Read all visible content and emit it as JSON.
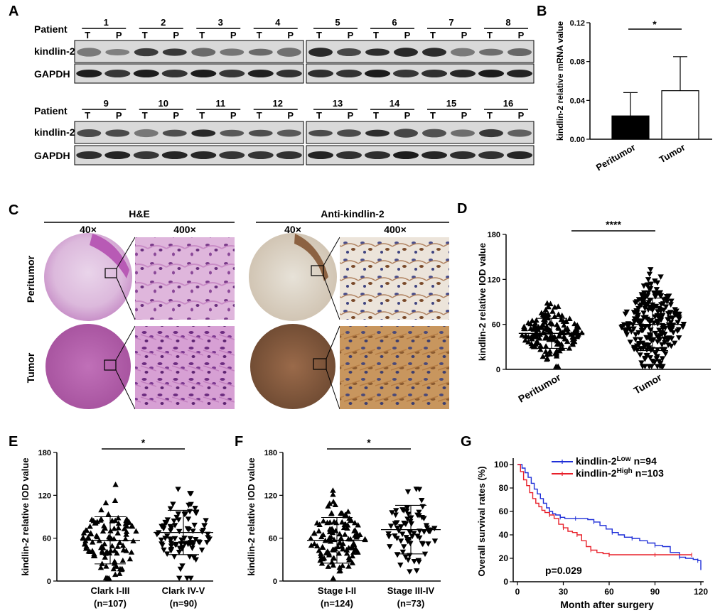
{
  "panels": {
    "A": {
      "label": "A",
      "row_label_patient": "Patient",
      "row_label_target": "kindlin-2",
      "row_label_control": "GAPDH",
      "lane_t": "T",
      "lane_p": "P",
      "patients_top": [
        "1",
        "2",
        "3",
        "4",
        "5",
        "6",
        "7",
        "8"
      ],
      "patients_bottom": [
        "9",
        "10",
        "11",
        "12",
        "13",
        "14",
        "15",
        "16"
      ]
    },
    "B": {
      "label": "B",
      "significance": "*",
      "chart_data": {
        "type": "bar",
        "categories": [
          "Peritumor",
          "Tumor"
        ],
        "values": [
          0.024,
          0.05
        ],
        "errors": [
          0.024,
          0.035
        ],
        "colors": [
          "#000000",
          "#ffffff"
        ],
        "ylabel": "kindlin-2 relative mRNA value",
        "ylim": [
          0,
          0.12
        ],
        "yticks": [
          "0.00",
          "0.04",
          "0.08",
          "0.12"
        ]
      }
    },
    "C": {
      "label": "C",
      "stain_he": "H&E",
      "stain_ab": "Anti-kindlin-2",
      "mag_low": "40×",
      "mag_high": "400×",
      "row_peri": "Peritumor",
      "row_tumor": "Tumor"
    },
    "D": {
      "label": "D",
      "significance": "****",
      "chart_data": {
        "type": "scatter",
        "categories": [
          "Peritumor",
          "Tumor"
        ],
        "means": [
          48,
          60
        ],
        "sd": [
          20,
          35
        ],
        "ylabel": "kindlin-2 relative IOD value",
        "ylim": [
          0,
          180
        ],
        "yticks": [
          "0",
          "60",
          "120",
          "180"
        ]
      }
    },
    "E": {
      "label": "E",
      "significance": "*",
      "cat1": "Clark I-III",
      "n1": "(n=107)",
      "cat2": "Clark IV-V",
      "n2": "(n=90)",
      "chart_data": {
        "type": "scatter",
        "categories": [
          "Clark I-III (n=107)",
          "Clark IV-V (n=90)"
        ],
        "means": [
          57,
          68
        ],
        "sd": [
          33,
          31
        ],
        "ylabel": "kindlin-2 relative IOD value",
        "ylim": [
          0,
          180
        ],
        "yticks": [
          "0",
          "60",
          "120",
          "180"
        ]
      }
    },
    "F": {
      "label": "F",
      "significance": "*",
      "cat1": "Stage I-II",
      "n1": "(n=124)",
      "cat2": "Stage III-IV",
      "n2": "(n=73)",
      "chart_data": {
        "type": "scatter",
        "categories": [
          "Stage I-II (n=124)",
          "Stage III-IV (n=73)"
        ],
        "means": [
          57,
          72
        ],
        "sd": [
          32,
          34
        ],
        "ylabel": "kindlin-2 relative IOD value",
        "ylim": [
          0,
          180
        ],
        "yticks": [
          "0",
          "60",
          "120",
          "180"
        ]
      }
    },
    "G": {
      "label": "G",
      "pvalue": "p=0.029",
      "legend_low_name": "kindlin-2",
      "legend_low_sup": "Low",
      "legend_low_n": "n=94",
      "legend_high_name": "kindlin-2",
      "legend_high_sup": "High",
      "legend_high_n": "n=103",
      "chart_data": {
        "type": "line",
        "title": "",
        "xlabel": "Month after surgery",
        "ylabel": "Overall survival rates (%)",
        "xlim": [
          0,
          120
        ],
        "ylim": [
          0,
          100
        ],
        "xticks": [
          "0",
          "30",
          "60",
          "90",
          "120"
        ],
        "yticks": [
          "0",
          "20",
          "40",
          "60",
          "80",
          "100"
        ],
        "series": [
          {
            "name": "kindlin-2 Low n=94",
            "color": "#1f2fd8",
            "x": [
              0,
              3,
              5,
              7,
              9,
              11,
              13,
              15,
              17,
              19,
              21,
              23,
              25,
              28,
              31,
              34,
              38,
              42,
              46,
              50,
              54,
              58,
              62,
              66,
              70,
              75,
              80,
              85,
              90,
              95,
              100,
              106,
              110,
              115,
              118,
              120
            ],
            "y": [
              100,
              97,
              93,
              89,
              84,
              79,
              75,
              71,
              67,
              63,
              60,
              58,
              57,
              55,
              54,
              54,
              54,
              54,
              53,
              51,
              48,
              45,
              42,
              40,
              38,
              37,
              35,
              33,
              31,
              30,
              25,
              21,
              20,
              19,
              18,
              10
            ]
          },
          {
            "name": "kindlin-2 High n=103",
            "color": "#e8202a",
            "x": [
              0,
              2,
              4,
              6,
              8,
              10,
              12,
              14,
              16,
              18,
              21,
              24,
              27,
              30,
              33,
              36,
              39,
              42,
              45,
              48,
              52,
              56,
              60,
              70,
              80,
              90,
              100,
              110,
              114
            ],
            "y": [
              100,
              94,
              87,
              82,
              76,
              71,
              67,
              64,
              61,
              59,
              57,
              54,
              49,
              46,
              43,
              42,
              40,
              35,
              30,
              27,
              25,
              24,
              23,
              23,
              23,
              23,
              23,
              23,
              23
            ]
          }
        ]
      }
    }
  }
}
